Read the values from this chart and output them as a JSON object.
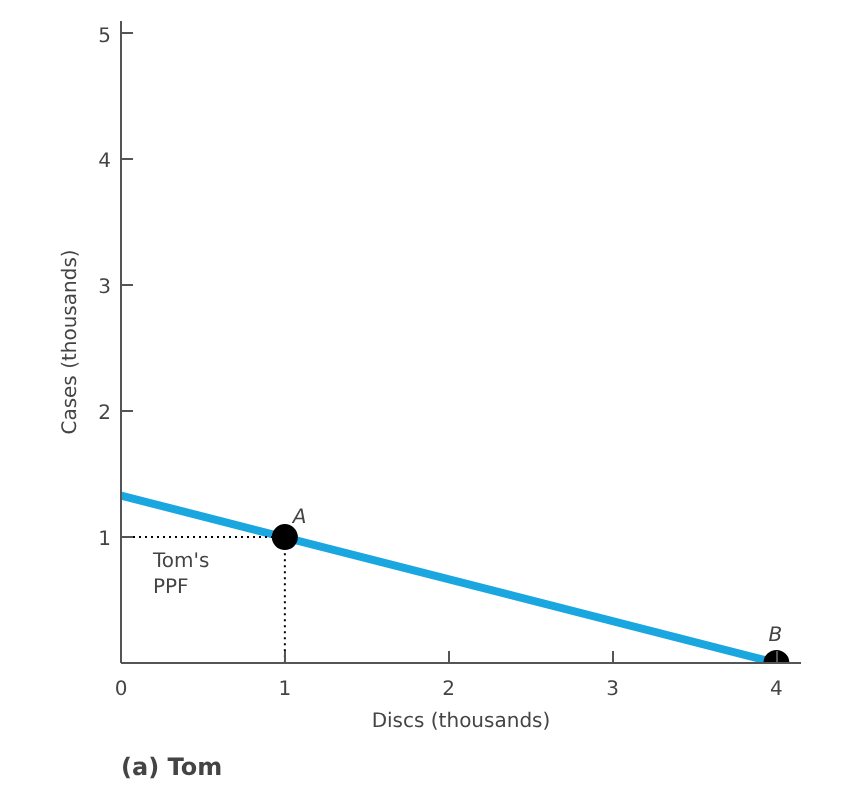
{
  "chart_data": {
    "type": "line",
    "title": "(a) Tom",
    "xlabel": "Discs (thousands)",
    "ylabel": "Cases (thousands)",
    "xlim": [
      0,
      4.15
    ],
    "ylim": [
      0,
      5.1
    ],
    "xticks": [
      {
        "value": 0,
        "label": "0"
      },
      1,
      2,
      3,
      4
    ],
    "yticks": [
      {
        "value": 0,
        "label": null
      },
      1,
      2,
      3,
      4,
      5
    ],
    "series": [
      {
        "color": "#1aa7e0",
        "x": [
          0,
          4
        ],
        "values": [
          1.33,
          0
        ],
        "line_style": "solid"
      },
      {
        "type": "line",
        "color": "#000000",
        "x": [
          0,
          1,
          1
        ],
        "values": [
          1,
          1,
          0
        ],
        "line_style": "dotted"
      },
      {
        "type": "scatter",
        "color": "#000000",
        "x": [
          1,
          4
        ],
        "values": [
          1,
          0
        ],
        "marker": "circle"
      }
    ],
    "annotations": [
      {
        "text": "A",
        "x": 1,
        "y": 1
      },
      {
        "text": "B",
        "x": 4,
        "y": 0
      },
      "Tom's\nPPF"
    ],
    "grid": false
  }
}
